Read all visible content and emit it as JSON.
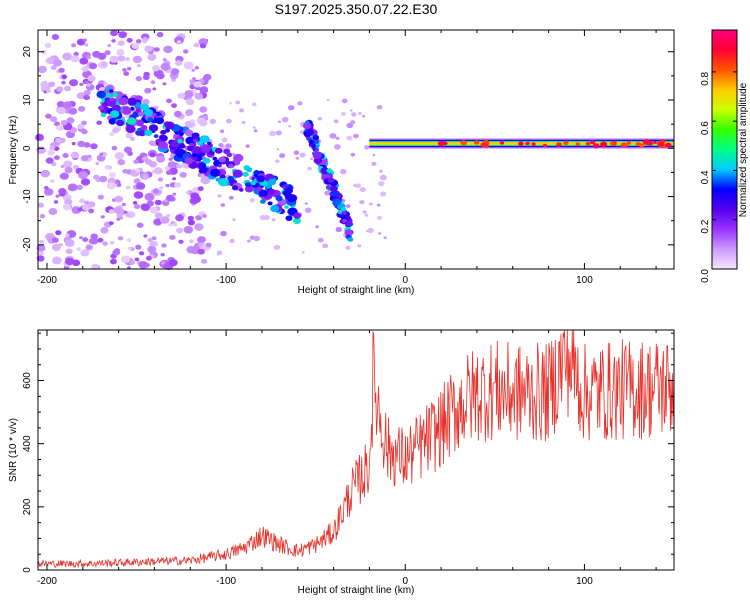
{
  "title": "S197.2025.350.07.22.E30",
  "chart_data": [
    {
      "type": "heatmap",
      "name": "spectrogram",
      "xlabel": "Height of straight line (km)",
      "ylabel": "Frequency (Hz)",
      "xlim": [
        -205,
        150
      ],
      "ylim": [
        -25,
        24.5
      ],
      "xticks": [
        -200,
        -100,
        0,
        100
      ],
      "yticks": [
        -20,
        -10,
        0,
        10,
        20
      ],
      "colorbar": {
        "label": "Normalized spectral amplitude",
        "range": [
          0,
          0.97
        ],
        "ticks": [
          0.0,
          0.2,
          0.4,
          0.6,
          0.8
        ],
        "tick_labels": [
          "0.0",
          "0.2",
          "0.4",
          "0.6",
          "0.8"
        ],
        "colors": [
          "#f4e8ff",
          "#cc99ff",
          "#9933ff",
          "#5500ee",
          "#0000ff",
          "#00ccff",
          "#00ff88",
          "#33ff00",
          "#ccff00",
          "#ffcc00",
          "#ff5500",
          "#ff0033",
          "#ff0080"
        ]
      },
      "features": [
        {
          "name": "diffuse-noise",
          "x_range": [
            -205,
            -110
          ],
          "freq_range": [
            -25,
            24
          ],
          "amplitude": 0.08
        },
        {
          "name": "descending-streak",
          "x_range": [
            -170,
            -60
          ],
          "freq_start": 10,
          "freq_end": -12,
          "amplitude": 0.3
        },
        {
          "name": "hook-arm",
          "x_range": [
            -55,
            -30
          ],
          "freq_start": 5,
          "freq_end": -18,
          "amplitude": 0.3
        },
        {
          "name": "carrier-line",
          "x_range": [
            -20,
            150
          ],
          "freq": 1,
          "amplitude": 0.95
        }
      ]
    },
    {
      "type": "line",
      "name": "snr",
      "xlabel": "Height of straight line (km)",
      "ylabel": "SNR (10 * v/v)",
      "xlim": [
        -205,
        150
      ],
      "ylim": [
        0,
        760
      ],
      "xticks": [
        -200,
        -100,
        0,
        100
      ],
      "yticks": [
        0,
        200,
        400,
        600
      ],
      "color": "#e8302a",
      "series": [
        {
          "name": "SNR",
          "x": [
            -205,
            -180,
            -150,
            -120,
            -100,
            -90,
            -80,
            -70,
            -60,
            -50,
            -40,
            -30,
            -20,
            -18,
            -10,
            0,
            10,
            20,
            30,
            40,
            50,
            60,
            80,
            90,
            100,
            120,
            150
          ],
          "values": [
            20,
            20,
            25,
            30,
            50,
            70,
            110,
            80,
            60,
            80,
            120,
            250,
            330,
            600,
            380,
            350,
            400,
            450,
            520,
            560,
            570,
            560,
            560,
            680,
            560,
            570,
            580
          ]
        }
      ]
    }
  ]
}
